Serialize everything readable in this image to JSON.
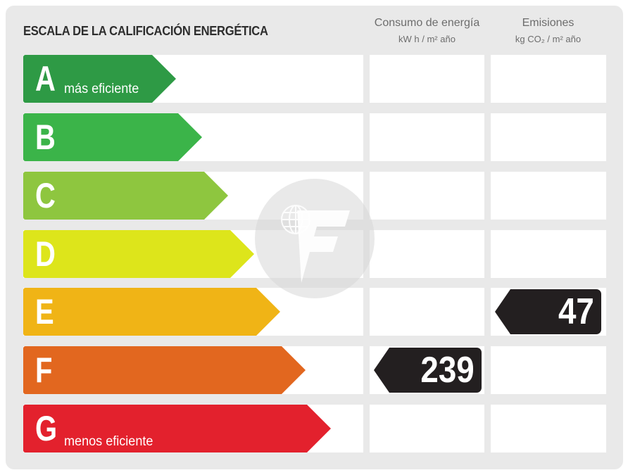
{
  "title": "ESCALA DE LA CALIFICACIÓN ENERGÉTICA",
  "columns": {
    "consumo": {
      "label": "Consumo de energía",
      "unit": "kW h / m² año"
    },
    "emisiones": {
      "label": "Emisiones",
      "unit": "kg CO₂ / m² año"
    }
  },
  "ratings": [
    {
      "letter": "A",
      "subtitle": "más eficiente",
      "color": "#2e9a45"
    },
    {
      "letter": "B",
      "subtitle": "",
      "color": "#3bb449"
    },
    {
      "letter": "C",
      "subtitle": "",
      "color": "#8ec63f"
    },
    {
      "letter": "D",
      "subtitle": "",
      "color": "#dde51b"
    },
    {
      "letter": "E",
      "subtitle": "",
      "color": "#f0b416"
    },
    {
      "letter": "F",
      "subtitle": "",
      "color": "#e2671f"
    },
    {
      "letter": "G",
      "subtitle": "menos eficiente",
      "color": "#e3212d"
    }
  ],
  "consumo": {
    "value": "239",
    "rating": "F"
  },
  "emisiones": {
    "value": "47",
    "rating": "E"
  },
  "watermark": {
    "icon": "logo-watermark-icon"
  }
}
